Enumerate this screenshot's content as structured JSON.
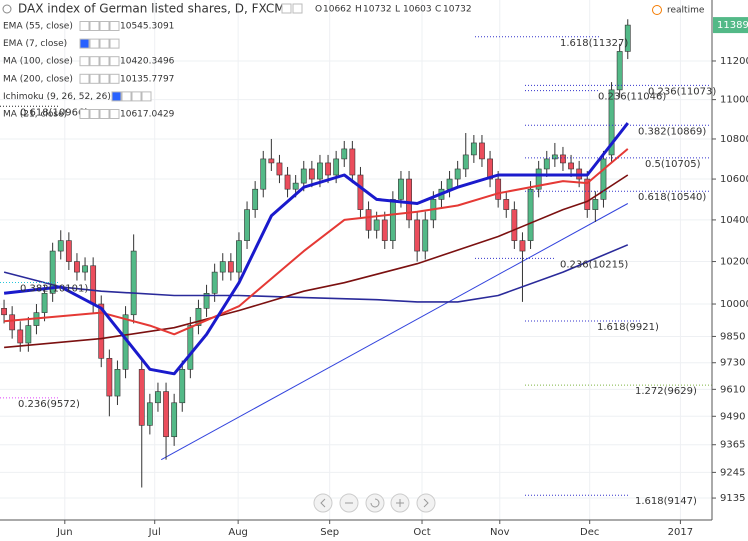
{
  "chart_data": {
    "type": "candlestick",
    "title": "DAX index of German listed shares, D, FXCM",
    "ohlc_header": [
      {
        "label": "O",
        "value": 10662
      },
      {
        "label": "H",
        "value": 10732
      },
      {
        "label": "L",
        "value": 10603
      },
      {
        "label": "C",
        "value": 10732
      }
    ],
    "realtime": "realtime",
    "indicators": [
      {
        "name": "EMA (55, close)",
        "value": 10545.3091,
        "color": "#b71c1c"
      },
      {
        "name": "EMA (7, close)",
        "color": "#aaaaaa"
      },
      {
        "name": "MA (100, close)",
        "value": 10420.3496,
        "color": "#7b1010"
      },
      {
        "name": "MA (200, close)",
        "value": 10135.7797,
        "color": "#2a2a7a"
      },
      {
        "name": "Ichimoku (9, 26, 52, 26)",
        "color": "#aaaaaa"
      },
      {
        "name": "MA (21, close)",
        "value": 10617.0429,
        "color": "#1a1acc"
      }
    ],
    "categories": [
      null,
      null,
      null,
      null,
      null,
      null,
      null,
      null,
      null,
      null,
      null,
      null,
      null,
      null,
      null,
      null,
      null,
      null,
      null,
      null,
      null,
      null,
      null,
      null,
      null,
      null,
      null,
      null,
      null,
      null,
      null,
      null,
      null,
      null,
      null,
      null,
      null,
      null,
      null,
      null,
      null,
      null,
      null,
      null,
      null,
      null,
      null,
      null,
      null,
      null,
      null,
      null,
      null,
      null,
      null,
      null,
      null,
      null,
      null,
      null,
      null,
      null,
      null,
      null,
      null,
      null,
      null,
      null,
      null,
      null,
      null,
      null,
      null,
      null,
      null,
      null,
      null,
      null
    ],
    "open": [
      9980,
      9950,
      9880,
      9820,
      9900,
      9960,
      10050,
      10250,
      10300,
      10200,
      10150,
      10180,
      10000,
      9750,
      9580,
      9700,
      9950,
      9700,
      9450,
      9550,
      9600,
      9400,
      9550,
      9700,
      9900,
      9980,
      10050,
      10150,
      10200,
      10150,
      10300,
      10450,
      10550,
      10700,
      10680,
      10620,
      10550,
      10580,
      10650,
      10600,
      10680,
      10620,
      10700,
      10750,
      10620,
      10450,
      10350,
      10400,
      10300,
      10500,
      10600,
      10400,
      10250,
      10400,
      10500,
      10550,
      10600,
      10650,
      10720,
      10780,
      10700,
      10600,
      10500,
      10450,
      10300,
      10300,
      10550,
      10650,
      10700,
      10720,
      10680,
      10650,
      10600,
      10450,
      10500,
      10720,
      11050,
      11250
    ],
    "high": [
      10020,
      9990,
      9920,
      9940,
      10000,
      10090,
      10290,
      10350,
      10340,
      10240,
      10220,
      10220,
      10040,
      9790,
      9740,
      9990,
      10330,
      9740,
      9590,
      9640,
      9640,
      9590,
      9740,
      9940,
      10020,
      10090,
      10190,
      10240,
      10240,
      10340,
      10490,
      10590,
      10740,
      10800,
      10720,
      10660,
      10620,
      10690,
      10690,
      10720,
      10720,
      10740,
      10790,
      10790,
      10660,
      10490,
      10440,
      10440,
      10540,
      10640,
      10640,
      10440,
      10440,
      10540,
      10590,
      10640,
      10690,
      10830,
      10820,
      10820,
      10740,
      10640,
      10540,
      10490,
      10340,
      10590,
      10690,
      10740,
      10780,
      10760,
      10720,
      10690,
      10640,
      10540,
      10740,
      11090,
      11290,
      11420
    ],
    "low": [
      9910,
      9840,
      9780,
      9780,
      9860,
      9920,
      10010,
      10210,
      10160,
      10110,
      10110,
      9960,
      9710,
      9490,
      9540,
      9660,
      9910,
      9180,
      9410,
      9510,
      9300,
      9360,
      9510,
      9660,
      9860,
      9940,
      10010,
      10110,
      10110,
      10110,
      10260,
      10410,
      10510,
      10640,
      10580,
      10510,
      10510,
      10540,
      10560,
      10560,
      10580,
      10580,
      10660,
      10580,
      10410,
      10310,
      10310,
      10260,
      10260,
      10460,
      10360,
      10200,
      10210,
      10360,
      10460,
      10510,
      10560,
      10610,
      10680,
      10660,
      10560,
      10460,
      10410,
      10260,
      10010,
      10260,
      10510,
      10610,
      10660,
      10640,
      10610,
      10560,
      10410,
      10390,
      10460,
      10680,
      11010,
      11210
    ],
    "close": [
      9950,
      9880,
      9820,
      9900,
      9960,
      10050,
      10250,
      10300,
      10200,
      10150,
      10180,
      10000,
      9750,
      9580,
      9700,
      9950,
      10250,
      9450,
      9550,
      9600,
      9400,
      9550,
      9700,
      9900,
      9980,
      10050,
      10150,
      10200,
      10150,
      10300,
      10450,
      10550,
      10700,
      10680,
      10620,
      10550,
      10580,
      10650,
      10600,
      10680,
      10620,
      10700,
      10750,
      10620,
      10450,
      10350,
      10400,
      10300,
      10500,
      10600,
      10400,
      10250,
      10400,
      10500,
      10550,
      10600,
      10650,
      10720,
      10780,
      10700,
      10600,
      10500,
      10450,
      10300,
      10250,
      10550,
      10650,
      10700,
      10720,
      10680,
      10650,
      10600,
      10450,
      10500,
      10700,
      11050,
      11250,
      11389
    ],
    "up_color": "#53b987",
    "down_color": "#eb4d5c",
    "lines": [
      {
        "color": "#2a2a9a",
        "x": [
          0,
          7,
          12,
          21,
          29,
          37,
          46,
          51,
          56,
          61,
          69,
          77
        ],
        "values": [
          10150,
          10080,
          10060,
          10040,
          10040,
          10030,
          10020,
          10010,
          10010,
          10040,
          10150,
          10280
        ]
      },
      {
        "color": "#7b1010",
        "x": [
          0,
          12,
          21,
          29,
          37,
          42,
          51,
          61,
          69,
          72,
          77
        ],
        "values": [
          9800,
          9840,
          9890,
          9970,
          10060,
          10100,
          10190,
          10320,
          10450,
          10490,
          10620
        ]
      },
      {
        "color": "#e53935",
        "x": [
          0,
          12,
          18,
          21,
          29,
          37,
          42,
          51,
          56,
          61,
          69,
          72,
          77
        ],
        "values": [
          9920,
          9960,
          9900,
          9860,
          9990,
          10250,
          10400,
          10440,
          10470,
          10530,
          10590,
          10580,
          10750
        ]
      },
      {
        "color": "#1a1acc",
        "x": [
          0,
          7,
          12,
          18,
          21,
          25,
          29,
          33,
          37,
          42,
          46,
          51,
          56,
          61,
          69,
          72,
          77
        ],
        "values": [
          10050,
          10080,
          9980,
          9700,
          9680,
          9860,
          10100,
          10420,
          10560,
          10620,
          10500,
          10480,
          10560,
          10620,
          10620,
          10620,
          10880
        ]
      }
    ],
    "trendline": {
      "color": "#3344dd",
      "x": [
        19.4,
        77
      ],
      "values": [
        9300,
        10480
      ]
    },
    "fibs": [
      {
        "label": "1.618(11327)",
        "value": 11327,
        "color": "#3333cc"
      },
      {
        "label": "0.236(11073)",
        "value": 11073,
        "color": "#3333cc"
      },
      {
        "label": "0.236(11046)",
        "value": 11046,
        "color": "#3333cc"
      },
      {
        "label": "0.382(10869)",
        "value": 10869,
        "color": "#3333cc"
      },
      {
        "label": "0.5(10705)",
        "value": 10705,
        "color": "#3333cc"
      },
      {
        "label": "0.618(10540)",
        "value": 10540,
        "color": "#3333cc"
      },
      {
        "label": "0.236(10215)",
        "value": 10215,
        "color": "#3333cc"
      },
      {
        "label": "1.618(9921)",
        "value": 9921,
        "color": "#3333cc"
      },
      {
        "label": "1.272(9629)",
        "value": 9629,
        "color": "#7cb342"
      },
      {
        "label": "1.618(9147)",
        "value": 9147,
        "color": "#3333cc"
      },
      {
        "label": "0.236(9572)",
        "value": 9572,
        "color": "#e040fb"
      },
      {
        "label": "0.618(10966)",
        "value": 10966,
        "color": "#222222"
      },
      {
        "label": "0.382(10101)",
        "value": 10101,
        "color": "#26c6da"
      }
    ],
    "last_price": 11389,
    "last_price_color": "#53b987",
    "log_scale": true,
    "grid": true,
    "ylim": [
      9042,
      11523
    ],
    "yticks": [
      11200,
      11000,
      10800,
      10600,
      10400,
      10200,
      10000,
      9850,
      9730,
      9610,
      9490,
      9365,
      9245,
      9135
    ],
    "xlim": [
      -0.5,
      87.4
    ],
    "xticks": [
      {
        "value": 7.5,
        "label": "Jun"
      },
      {
        "value": 18.6,
        "label": "Jul"
      },
      {
        "value": 28.9,
        "label": "Aug"
      },
      {
        "value": 40.2,
        "label": "Sep"
      },
      {
        "value": 51.6,
        "label": "Oct"
      },
      {
        "value": 61.2,
        "label": "Nov"
      },
      {
        "value": 72.3,
        "label": "Dec"
      },
      {
        "value": 83.5,
        "label": "2017"
      }
    ]
  }
}
